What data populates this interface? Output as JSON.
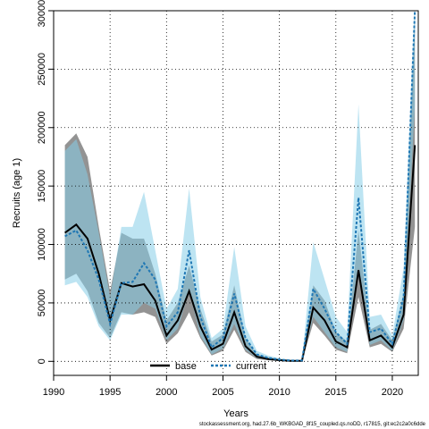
{
  "chart_data": {
    "type": "line",
    "title": "",
    "xlabel": "Years",
    "ylabel": "Recruits (age 1)",
    "xlim": [
      1990,
      2022
    ],
    "ylim": [
      0,
      300000
    ],
    "xticks": [
      1990,
      1995,
      2000,
      2005,
      2010,
      2015,
      2020
    ],
    "yticks": [
      0,
      50000,
      100000,
      150000,
      200000,
      250000,
      300000
    ],
    "grid": true,
    "legend_position": "bottom-center",
    "x": [
      1991,
      1992,
      1993,
      1994,
      1995,
      1996,
      1997,
      1998,
      1999,
      2000,
      2001,
      2002,
      2003,
      2004,
      2005,
      2006,
      2007,
      2008,
      2009,
      2010,
      2011,
      2012,
      2013,
      2014,
      2015,
      2016,
      2017,
      2018,
      2019,
      2020,
      2021,
      2022
    ],
    "series": [
      {
        "name": "base",
        "color": "#000000",
        "band_color": "#808080",
        "values": [
          110000,
          117000,
          105000,
          75000,
          35000,
          67000,
          64000,
          66000,
          52000,
          22000,
          35000,
          60000,
          30000,
          10000,
          15000,
          42000,
          13000,
          4000,
          2000,
          1000,
          500,
          500,
          46000,
          35000,
          17000,
          12000,
          78000,
          18000,
          22000,
          12000,
          40000,
          185000
        ],
        "lower": [
          70000,
          75000,
          60000,
          33000,
          20000,
          42000,
          40000,
          42000,
          38000,
          15000,
          24000,
          42000,
          20000,
          5000,
          9000,
          27000,
          8000,
          2000,
          1000,
          500,
          200,
          200,
          33000,
          22000,
          10000,
          7000,
          55000,
          12000,
          15000,
          8000,
          28000,
          115000
        ],
        "upper": [
          185000,
          195000,
          175000,
          115000,
          60000,
          110000,
          105000,
          105000,
          75000,
          35000,
          50000,
          82000,
          45000,
          17000,
          23000,
          65000,
          20000,
          6000,
          3500,
          1800,
          900,
          900,
          65000,
          52000,
          25000,
          17000,
          112000,
          27000,
          32000,
          18000,
          58000,
          295000
        ]
      },
      {
        "name": "current",
        "color": "#1f77b4",
        "band_color": "#87cee8",
        "values": [
          107000,
          112000,
          95000,
          70000,
          32000,
          67000,
          68000,
          84000,
          70000,
          30000,
          42000,
          95000,
          38000,
          12000,
          20000,
          58000,
          20000,
          6000,
          3000,
          1500,
          700,
          700,
          62000,
          45000,
          25000,
          15000,
          140000,
          25000,
          28000,
          15000,
          55000,
          300000
        ],
        "lower": [
          65000,
          68000,
          55000,
          30000,
          18000,
          40000,
          40000,
          50000,
          45000,
          18000,
          28000,
          60000,
          22000,
          6000,
          11000,
          32000,
          10000,
          3000,
          1500,
          700,
          300,
          300,
          38000,
          25000,
          12000,
          8000,
          80000,
          14000,
          18000,
          9000,
          35000,
          220000
        ],
        "upper": [
          180000,
          190000,
          160000,
          110000,
          55000,
          115000,
          115000,
          145000,
          95000,
          45000,
          62000,
          148000,
          55000,
          20000,
          28000,
          98000,
          30000,
          9000,
          5000,
          2500,
          1200,
          1200,
          102000,
          70000,
          38000,
          25000,
          220000,
          38000,
          40000,
          22000,
          80000,
          310000
        ]
      }
    ]
  },
  "footer": "stockassessment.org, had.27.6b_WKBGAD_8f15_coupled.qs.noDD, r17815, git:ec2c2a0c6dde"
}
